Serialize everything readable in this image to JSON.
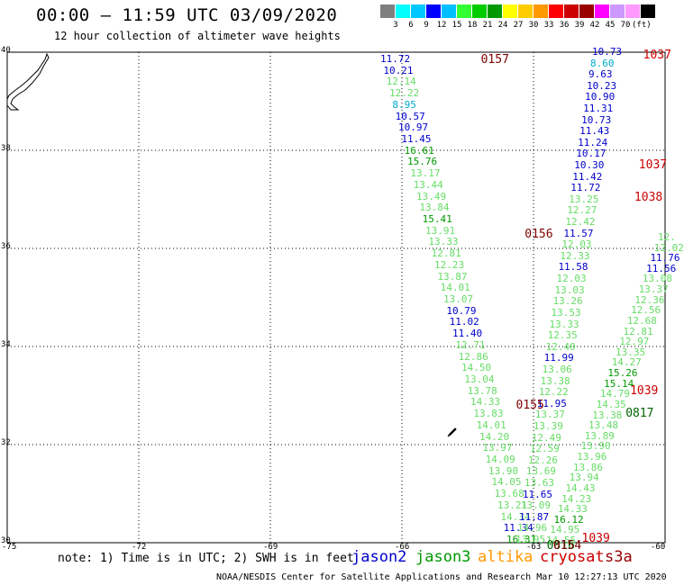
{
  "header": {
    "title": "00:00 – 11:59 UTC 03/09/2020",
    "subtitle": "12 hour collection of altimeter wave heights"
  },
  "colorbar": {
    "colors": [
      "#7f7f7f",
      "#00ffff",
      "#00c8ff",
      "#0000ff",
      "#00bfff",
      "#33ff33",
      "#00cc00",
      "#009900",
      "#ffff00",
      "#ffcc00",
      "#ff9900",
      "#ff0000",
      "#cc0000",
      "#990000",
      "#ff00ff",
      "#cc99ff",
      "#ff99ff",
      "#000000"
    ],
    "labels": [
      "3",
      "6",
      "9",
      "12",
      "15",
      "18",
      "21",
      "24",
      "27",
      "30",
      "33",
      "36",
      "39",
      "42",
      "45",
      "70",
      "(ft)"
    ]
  },
  "map": {
    "lat_labels": [
      "40",
      "38",
      "36",
      "34",
      "32",
      "30"
    ],
    "lon_labels": [
      "-75",
      "-72",
      "-69",
      "-66",
      "-63",
      "-60"
    ],
    "lon_range": [
      -75,
      -60
    ],
    "lat_range": [
      30,
      40
    ],
    "grid": true
  },
  "colors": {
    "jason2": "#0000cc",
    "jason3": "#009900",
    "altika": "#ff9900",
    "cryosat": "#cc0000",
    "s3a": "#990000"
  },
  "pass_labels": [
    {
      "text": "0157",
      "lat": 39.85,
      "lon": -64.2,
      "color": "#7f0000"
    },
    {
      "text": "1037",
      "lat": 39.95,
      "lon": -60.5,
      "color": "#cc0000"
    },
    {
      "text": "1037",
      "lat": 37.7,
      "lon": -60.6,
      "color": "#cc0000"
    },
    {
      "text": "1038",
      "lat": 37.05,
      "lon": -60.7,
      "color": "#cc0000"
    },
    {
      "text": "0156",
      "lat": 36.3,
      "lon": -63.2,
      "color": "#7f0000"
    },
    {
      "text": "0155",
      "lat": 32.8,
      "lon": -63.4,
      "color": "#7f0000"
    },
    {
      "text": "1039",
      "lat": 33.1,
      "lon": -60.8,
      "color": "#cc0000"
    },
    {
      "text": "0817",
      "lat": 32.65,
      "lon": -60.9,
      "color": "#006600"
    },
    {
      "text": "1039",
      "lat": 30.1,
      "lon": -61.9,
      "color": "#cc0000"
    },
    {
      "text": "0816",
      "lat": 29.95,
      "lon": -62.7,
      "color": "#006600"
    },
    {
      "text": "0154",
      "lat": 29.95,
      "lon": -62.55,
      "color": "#7f0000"
    }
  ],
  "track_a": [
    {
      "v": "11.72",
      "c": "#0000cc"
    },
    {
      "v": "10.21",
      "c": "#0000cc"
    },
    {
      "v": "12.14",
      "c": "#66dd66"
    },
    {
      "v": "12.22",
      "c": "#66dd66"
    },
    {
      "v": "8.95",
      "c": "#00aacc"
    },
    {
      "v": "10.57",
      "c": "#0000cc"
    },
    {
      "v": "10.97",
      "c": "#0000cc"
    },
    {
      "v": "11.45",
      "c": "#0000cc"
    },
    {
      "v": "16.61",
      "c": "#009900"
    },
    {
      "v": "15.76",
      "c": "#009900"
    },
    {
      "v": "13.17",
      "c": "#66dd66"
    },
    {
      "v": "13.44",
      "c": "#66dd66"
    },
    {
      "v": "13.49",
      "c": "#66dd66"
    },
    {
      "v": "13.84",
      "c": "#66dd66"
    },
    {
      "v": "15.41",
      "c": "#009900"
    },
    {
      "v": "13.91",
      "c": "#66dd66"
    },
    {
      "v": "13.33",
      "c": "#66dd66"
    },
    {
      "v": "12.81",
      "c": "#66dd66"
    },
    {
      "v": "12.23",
      "c": "#66dd66"
    },
    {
      "v": "13.87",
      "c": "#66dd66"
    },
    {
      "v": "14.01",
      "c": "#66dd66"
    },
    {
      "v": "13.07",
      "c": "#66dd66"
    },
    {
      "v": "10.79",
      "c": "#0000cc"
    },
    {
      "v": "11.02",
      "c": "#0000cc"
    },
    {
      "v": "11.40",
      "c": "#0000cc"
    },
    {
      "v": "12.71",
      "c": "#66dd66"
    },
    {
      "v": "12.86",
      "c": "#66dd66"
    },
    {
      "v": "14.50",
      "c": "#66dd66"
    },
    {
      "v": "13.04",
      "c": "#66dd66"
    },
    {
      "v": "13.78",
      "c": "#66dd66"
    },
    {
      "v": "14.33",
      "c": "#66dd66"
    },
    {
      "v": "13.83",
      "c": "#66dd66"
    },
    {
      "v": "14.01",
      "c": "#66dd66"
    },
    {
      "v": "14.20",
      "c": "#66dd66"
    },
    {
      "v": "13.97",
      "c": "#66dd66"
    },
    {
      "v": "14.09",
      "c": "#66dd66"
    },
    {
      "v": "13.90",
      "c": "#66dd66"
    },
    {
      "v": "14.05",
      "c": "#66dd66"
    },
    {
      "v": "13.68",
      "c": "#66dd66"
    },
    {
      "v": "13.21",
      "c": "#66dd66"
    },
    {
      "v": "14.34",
      "c": "#66dd66"
    },
    {
      "v": "11.34",
      "c": "#0000cc"
    },
    {
      "v": "16.31",
      "c": "#009900"
    }
  ],
  "track_b": [
    {
      "v": "10.73",
      "c": "#0000cc"
    },
    {
      "v": "8.60",
      "c": "#00aacc"
    },
    {
      "v": "9.63",
      "c": "#0000cc"
    },
    {
      "v": "10.23",
      "c": "#0000cc"
    },
    {
      "v": "10.90",
      "c": "#0000cc"
    },
    {
      "v": "11.31",
      "c": "#0000cc"
    },
    {
      "v": "10.73",
      "c": "#0000cc"
    },
    {
      "v": "11.43",
      "c": "#0000cc"
    },
    {
      "v": "11.24",
      "c": "#0000cc"
    },
    {
      "v": "10.17",
      "c": "#0000cc"
    },
    {
      "v": "10.30",
      "c": "#0000cc"
    },
    {
      "v": "11.42",
      "c": "#0000cc"
    },
    {
      "v": "11.72",
      "c": "#0000cc"
    },
    {
      "v": "13.25",
      "c": "#66dd66"
    },
    {
      "v": "12.27",
      "c": "#66dd66"
    },
    {
      "v": "12.42",
      "c": "#66dd66"
    },
    {
      "v": "11.57",
      "c": "#0000cc"
    },
    {
      "v": "12.03",
      "c": "#66dd66"
    },
    {
      "v": "12.33",
      "c": "#66dd66"
    },
    {
      "v": "11.58",
      "c": "#0000cc"
    },
    {
      "v": "12.03",
      "c": "#66dd66"
    },
    {
      "v": "13.03",
      "c": "#66dd66"
    },
    {
      "v": "13.26",
      "c": "#66dd66"
    },
    {
      "v": "13.53",
      "c": "#66dd66"
    },
    {
      "v": "13.33",
      "c": "#66dd66"
    },
    {
      "v": "12.35",
      "c": "#66dd66"
    },
    {
      "v": "12.40",
      "c": "#66dd66"
    },
    {
      "v": "11.99",
      "c": "#0000cc"
    },
    {
      "v": "13.06",
      "c": "#66dd66"
    },
    {
      "v": "13.38",
      "c": "#66dd66"
    },
    {
      "v": "12.22",
      "c": "#66dd66"
    },
    {
      "v": "11.95",
      "c": "#0000cc"
    },
    {
      "v": "13.37",
      "c": "#66dd66"
    },
    {
      "v": "13.39",
      "c": "#66dd66"
    },
    {
      "v": "12.49",
      "c": "#66dd66"
    },
    {
      "v": "12.59",
      "c": "#66dd66"
    },
    {
      "v": "12.26",
      "c": "#66dd66"
    },
    {
      "v": "13.69",
      "c": "#66dd66"
    },
    {
      "v": "13.63",
      "c": "#66dd66"
    },
    {
      "v": "11.65",
      "c": "#0000cc"
    },
    {
      "v": "13.09",
      "c": "#66dd66"
    },
    {
      "v": "11.87",
      "c": "#0000cc"
    },
    {
      "v": "14.96",
      "c": "#66dd66"
    },
    {
      "v": "13.95",
      "c": "#66dd66"
    }
  ],
  "track_c": [
    {
      "v": "12.",
      "c": "#66dd66"
    },
    {
      "v": "12.02",
      "c": "#66dd66"
    },
    {
      "v": "11.76",
      "c": "#0000cc"
    },
    {
      "v": "11.56",
      "c": "#0000cc"
    },
    {
      "v": "13.08",
      "c": "#66dd66"
    },
    {
      "v": "13.37",
      "c": "#66dd66"
    },
    {
      "v": "12.36",
      "c": "#66dd66"
    },
    {
      "v": "12.56",
      "c": "#66dd66"
    },
    {
      "v": "12.68",
      "c": "#66dd66"
    },
    {
      "v": "12.81",
      "c": "#66dd66"
    },
    {
      "v": "12.97",
      "c": "#66dd66"
    },
    {
      "v": "13.35",
      "c": "#66dd66"
    },
    {
      "v": "14.27",
      "c": "#66dd66"
    },
    {
      "v": "15.26",
      "c": "#009900"
    },
    {
      "v": "15.14",
      "c": "#009900"
    },
    {
      "v": "14.79",
      "c": "#66dd66"
    },
    {
      "v": "14.35",
      "c": "#66dd66"
    },
    {
      "v": "13.38",
      "c": "#66dd66"
    },
    {
      "v": "13.48",
      "c": "#66dd66"
    },
    {
      "v": "13.89",
      "c": "#66dd66"
    },
    {
      "v": "13.90",
      "c": "#66dd66"
    },
    {
      "v": "13.96",
      "c": "#66dd66"
    },
    {
      "v": "13.86",
      "c": "#66dd66"
    },
    {
      "v": "13.94",
      "c": "#66dd66"
    },
    {
      "v": "14.43",
      "c": "#66dd66"
    },
    {
      "v": "14.23",
      "c": "#66dd66"
    },
    {
      "v": "14.33",
      "c": "#66dd66"
    },
    {
      "v": "16.12",
      "c": "#009900"
    },
    {
      "v": "14.95",
      "c": "#66dd66"
    },
    {
      "v": "14.55",
      "c": "#66dd66"
    }
  ],
  "legend_note": "note:  1) Time is in UTC;  2) SWH is in feet",
  "satellites": [
    {
      "name": "jason2",
      "color": "#0000cc"
    },
    {
      "name": "jason3",
      "color": "#009900"
    },
    {
      "name": "altika",
      "color": "#ff9900"
    },
    {
      "name": "cryosat",
      "color": "#cc0000"
    },
    {
      "name": "s3a",
      "color": "#990000"
    }
  ],
  "footer": "NOAA/NESDIS Center for Satellite Applications and Research   Mar 10 12:27:13 UTC 2020"
}
